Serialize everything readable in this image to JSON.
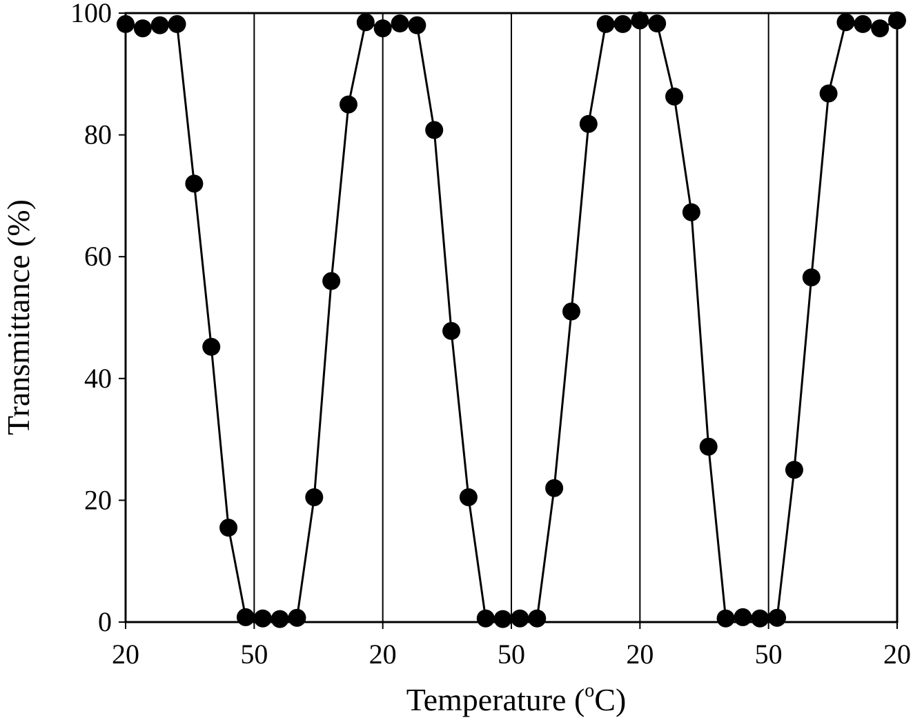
{
  "chart_data": {
    "type": "line",
    "title": "",
    "xlabel": "Temperature (",
    "xlabel_superscript": "o",
    "xlabel_suffix": "C)",
    "ylabel": "Transmittance (%)",
    "ylim": [
      0,
      100
    ],
    "yticks": [
      0,
      20,
      40,
      60,
      80,
      100
    ],
    "xticks": [
      "20",
      "50",
      "20",
      "50",
      "20",
      "50",
      "20"
    ],
    "grid": false,
    "segment_dividers": true,
    "marker": "filled-circle",
    "line_color": "#000000",
    "series": [
      {
        "values": [
          98.2,
          97.5,
          98.0,
          98.2,
          72.0,
          45.2,
          15.5,
          0.8,
          0.6,
          0.5,
          0.7,
          20.5,
          56.0,
          85.0,
          98.5,
          97.5,
          98.3,
          98.0,
          80.8,
          47.8,
          20.5,
          0.6,
          0.5,
          0.6,
          0.6,
          22.0,
          51.0,
          81.8,
          98.2,
          98.2,
          98.8,
          98.3,
          86.3,
          67.3,
          28.8,
          0.6,
          0.8,
          0.6,
          0.7,
          25.0,
          56.6,
          86.8,
          98.5,
          98.2,
          97.5,
          98.8
        ]
      }
    ]
  }
}
